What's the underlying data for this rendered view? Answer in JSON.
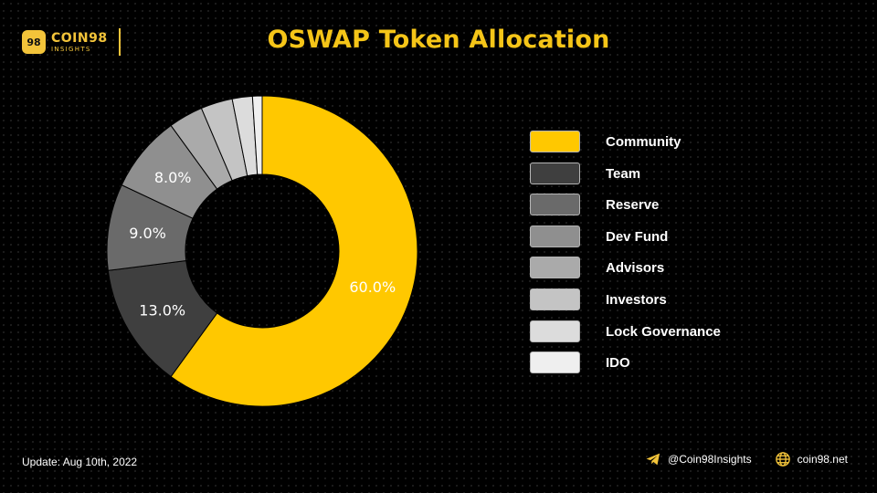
{
  "brand": {
    "name": "COIN98",
    "sub": "INSIGHTS",
    "badge": "98"
  },
  "title": "OSWAP Token Allocation",
  "chart_data": {
    "type": "pie",
    "title": "OSWAP Token Allocation",
    "hole": true,
    "legend_position": "right",
    "categories": [
      "Community",
      "Team",
      "Reserve",
      "Dev Fund",
      "Advisors",
      "Investors",
      "Lock Governance",
      "IDO"
    ],
    "values": [
      60.0,
      13.0,
      9.0,
      8.0,
      3.6,
      3.3,
      2.1,
      1.0
    ],
    "labels": [
      "60.0%",
      "13.0%",
      "9.0%",
      "8.0%",
      "",
      "",
      "",
      ""
    ],
    "colors": [
      "#ffc800",
      "#3f3f3f",
      "#6a6a6a",
      "#8f8f8f",
      "#aaaaaa",
      "#c4c4c4",
      "#dcdcdc",
      "#efefef"
    ]
  },
  "footer": {
    "update": "Update: Aug 10th, 2022",
    "telegram": "@Coin98Insights",
    "website": "coin98.net"
  },
  "icons": {
    "telegram": "telegram-icon",
    "globe": "globe-icon"
  }
}
